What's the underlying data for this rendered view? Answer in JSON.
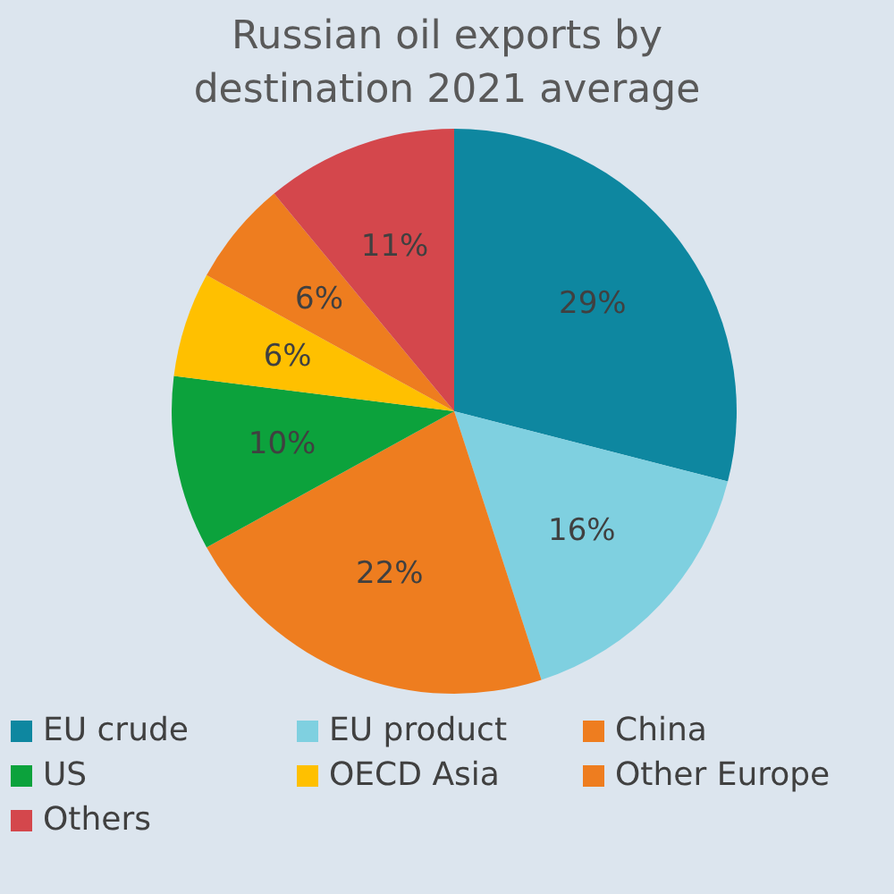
{
  "chart_data": {
    "type": "pie",
    "title": "Russian oil exports by destination 2021 average",
    "categories": [
      "EU crude",
      "EU product",
      "China",
      "US",
      "OECD Asia",
      "Other Europe",
      "Others"
    ],
    "values": [
      29,
      16,
      22,
      10,
      6,
      6,
      11
    ],
    "value_labels": [
      "29%",
      "16%",
      "22%",
      "10%",
      "6%",
      "6%",
      "11%"
    ],
    "colors": [
      "#0e87a0",
      "#7fd0e0",
      "#ee7d1f",
      "#0ca23c",
      "#ffc000",
      "#ee7d1f",
      "#d4474c"
    ],
    "legend": "bottom"
  }
}
